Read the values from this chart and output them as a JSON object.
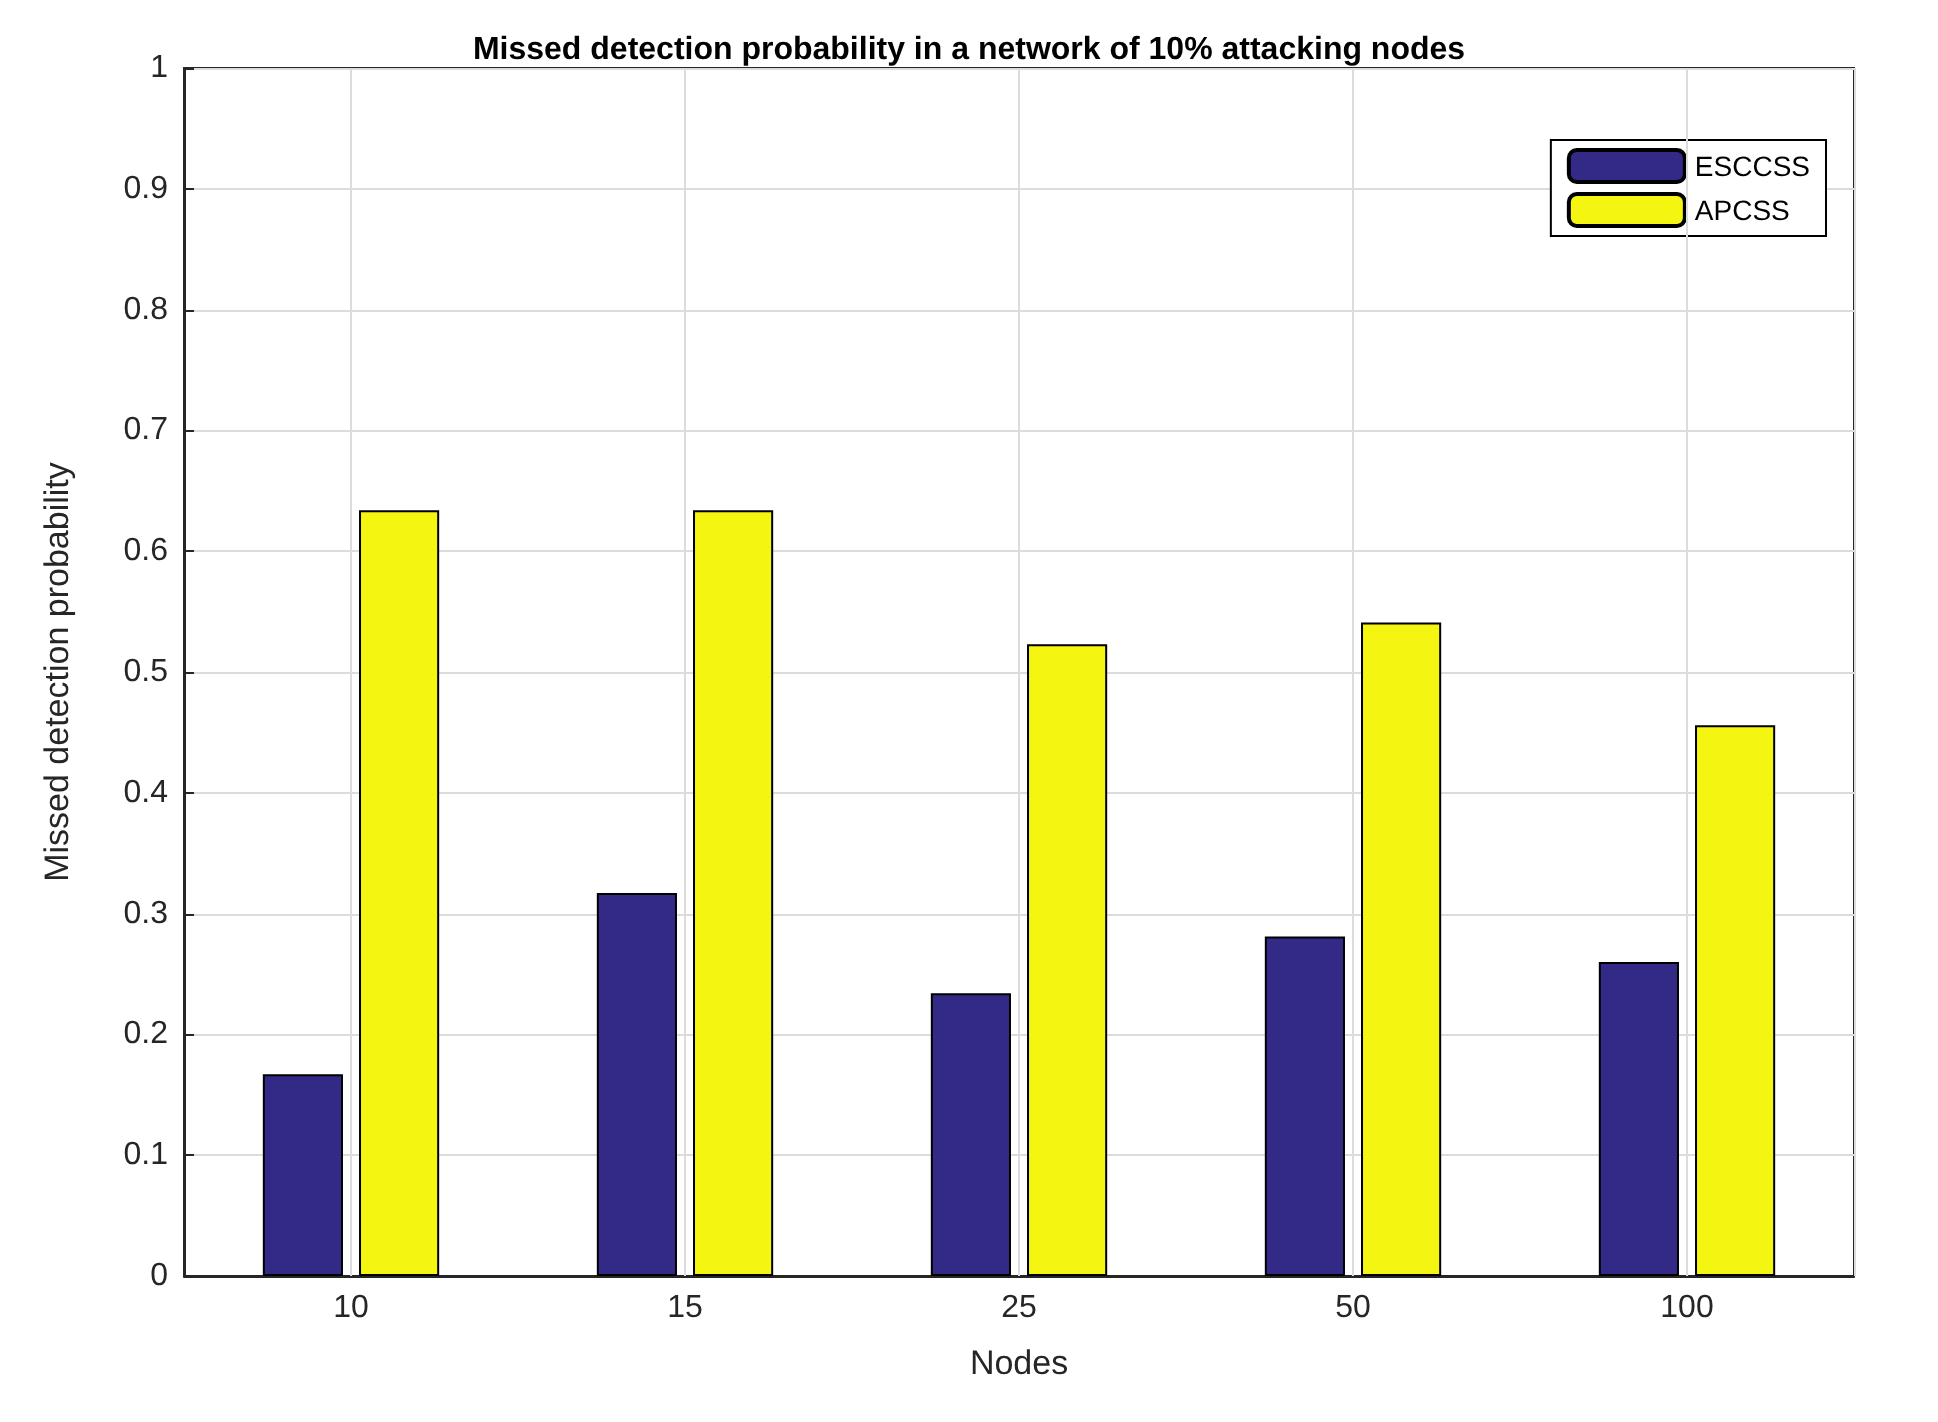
{
  "chart_data": {
    "type": "bar",
    "title": "Missed detection probability in a network of 10% attacking nodes",
    "xlabel": "Nodes",
    "ylabel": "Missed detection probability",
    "categories": [
      "10",
      "15",
      "25",
      "50",
      "100"
    ],
    "series": [
      {
        "name": "ESCCSS",
        "color": "#332a87",
        "values": [
          0.167,
          0.317,
          0.234,
          0.281,
          0.26
        ]
      },
      {
        "name": "APCSS",
        "color": "#f5f512",
        "values": [
          0.634,
          0.634,
          0.523,
          0.541,
          0.456
        ]
      }
    ],
    "ylim": [
      0,
      1
    ],
    "yticks": [
      0,
      0.1,
      0.2,
      0.3,
      0.4,
      0.5,
      0.6,
      0.7,
      0.8,
      0.9,
      1
    ],
    "grid": true,
    "legend": "top right"
  }
}
